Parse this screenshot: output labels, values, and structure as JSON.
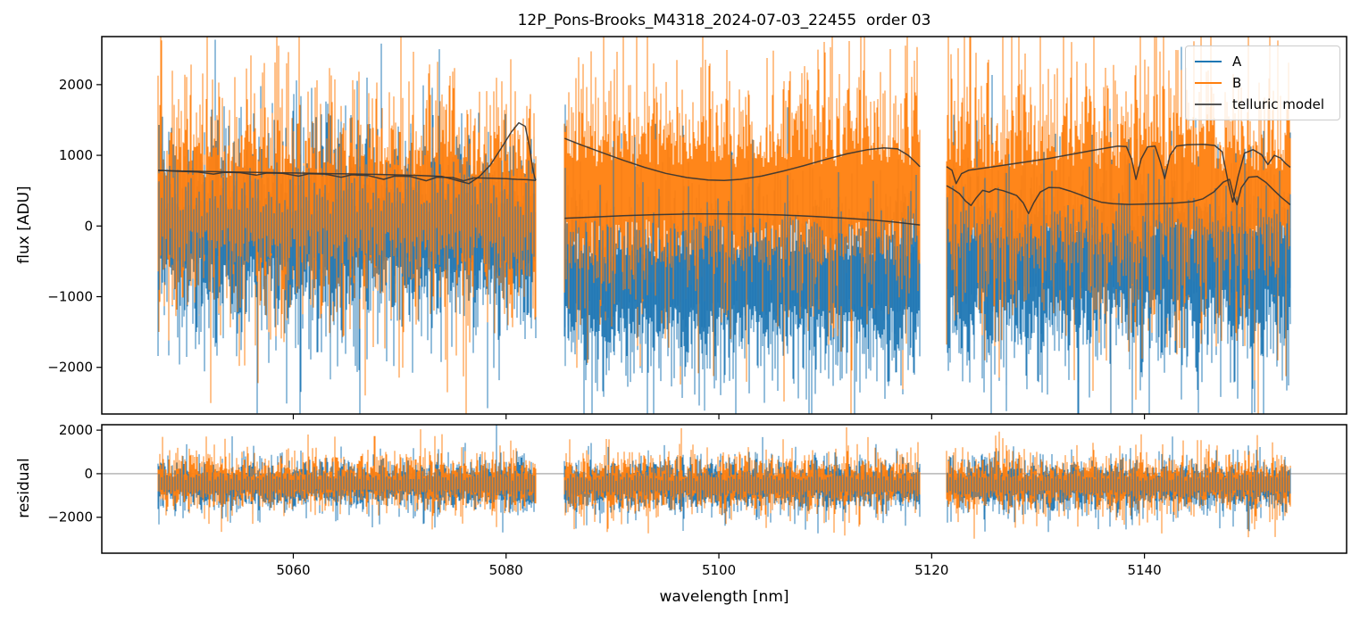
{
  "chart_data": {
    "type": "line",
    "title": "12P_Pons-Brooks_M4318_2024-07-03_22455  order 03",
    "xlabel": "wavelength [nm]",
    "xlim": [
      5042,
      5159
    ],
    "xticks": [
      5060,
      5080,
      5100,
      5120,
      5140
    ],
    "grid": false,
    "legend": {
      "position": "upper right",
      "entries": [
        "A",
        "B",
        "telluric model"
      ]
    },
    "wavelength_segments_nm": [
      [
        5047.3,
        5082.8
      ],
      [
        5085.5,
        5118.9
      ],
      [
        5121.4,
        5153.7
      ]
    ],
    "panels": [
      {
        "id": "flux",
        "ylabel": "flux [ADU]",
        "ylim": [
          -2660,
          2680
        ],
        "yticks": [
          -2000,
          -1000,
          0,
          1000,
          2000
        ],
        "spike_rate": 0.12,
        "spike_scale": 2.0,
        "series": [
          {
            "name": "A",
            "color": "#1f77b4",
            "noise_envelope_by_segment": [
              {
                "center": -120,
                "sigma": 680
              },
              {
                "center": -780,
                "sigma": 680
              },
              {
                "center": -520,
                "sigma": 730
              }
            ]
          },
          {
            "name": "B",
            "color": "#ff7f0e",
            "noise_envelope_by_segment": [
              {
                "center": 330,
                "sigma": 760
              },
              {
                "center": 470,
                "sigma": 800
              },
              {
                "center": 420,
                "sigma": 800
              }
            ]
          }
        ]
      },
      {
        "id": "residual",
        "ylabel": "residual",
        "ylim": [
          -3650,
          2250
        ],
        "yticks": [
          -2000,
          0,
          2000
        ],
        "zero_line_y": 0,
        "spike_rate": 0.09,
        "spike_scale": 2.3,
        "series": [
          {
            "name": "A",
            "color": "#1f77b4",
            "noise_envelope_by_segment": [
              {
                "center": -520,
                "sigma": 560
              },
              {
                "center": -560,
                "sigma": 580
              },
              {
                "center": -540,
                "sigma": 580
              }
            ]
          },
          {
            "name": "B",
            "color": "#ff7f0e",
            "noise_envelope_by_segment": [
              {
                "center": -430,
                "sigma": 620
              },
              {
                "center": -460,
                "sigma": 640
              },
              {
                "center": -450,
                "sigma": 640
              }
            ]
          }
        ]
      }
    ],
    "telluric_model": {
      "name": "telluric model",
      "color": "#333333",
      "curves_by_segment": [
        [
          [
            [
              5047.3,
              790
            ],
            [
              5049,
              775
            ],
            [
              5051,
              765
            ],
            [
              5052.5,
              735
            ],
            [
              5053.5,
              760
            ],
            [
              5055,
              755
            ],
            [
              5056.5,
              720
            ],
            [
              5057.5,
              750
            ],
            [
              5059,
              745
            ],
            [
              5060.5,
              705
            ],
            [
              5061.5,
              740
            ],
            [
              5063,
              735
            ],
            [
              5064.5,
              690
            ],
            [
              5065.5,
              725
            ],
            [
              5067,
              715
            ],
            [
              5068.5,
              660
            ],
            [
              5069.5,
              705
            ],
            [
              5071,
              700
            ],
            [
              5072.5,
              640
            ],
            [
              5073.5,
              690
            ],
            [
              5075,
              685
            ],
            [
              5076,
              640
            ],
            [
              5077,
              680
            ],
            [
              5078.5,
              675
            ],
            [
              5080,
              670
            ],
            [
              5081,
              660
            ],
            [
              5082,
              655
            ],
            [
              5082.8,
              645
            ]
          ],
          [
            [
              5047.3,
              785
            ],
            [
              5052,
              770
            ],
            [
              5056,
              760
            ],
            [
              5060,
              750
            ],
            [
              5064,
              740
            ],
            [
              5068,
              730
            ],
            [
              5072,
              715
            ],
            [
              5074,
              700
            ],
            [
              5075.5,
              640
            ],
            [
              5076.5,
              600
            ],
            [
              5077.5,
              700
            ],
            [
              5078.5,
              860
            ],
            [
              5079.5,
              1090
            ],
            [
              5080.5,
              1330
            ],
            [
              5081.2,
              1460
            ],
            [
              5081.8,
              1410
            ],
            [
              5082.2,
              1120
            ],
            [
              5082.5,
              820
            ],
            [
              5082.7,
              680
            ],
            [
              5082.8,
              650
            ]
          ]
        ],
        [
          [
            [
              5085.5,
              1240
            ],
            [
              5087,
              1150
            ],
            [
              5089,
              1040
            ],
            [
              5091,
              930
            ],
            [
              5093,
              830
            ],
            [
              5095,
              745
            ],
            [
              5097,
              685
            ],
            [
              5099,
              650
            ],
            [
              5100.5,
              645
            ],
            [
              5102,
              660
            ],
            [
              5104,
              705
            ],
            [
              5106,
              775
            ],
            [
              5108,
              855
            ],
            [
              5110,
              940
            ],
            [
              5112,
              1020
            ],
            [
              5114,
              1080
            ],
            [
              5115.5,
              1105
            ],
            [
              5116.8,
              1090
            ],
            [
              5117.8,
              1000
            ],
            [
              5118.5,
              900
            ],
            [
              5118.9,
              840
            ]
          ],
          [
            [
              5085.5,
              110
            ],
            [
              5088,
              125
            ],
            [
              5091,
              145
            ],
            [
              5094,
              160
            ],
            [
              5097,
              170
            ],
            [
              5100,
              172
            ],
            [
              5103,
              168
            ],
            [
              5106,
              155
            ],
            [
              5109,
              135
            ],
            [
              5112,
              110
            ],
            [
              5114.5,
              85
            ],
            [
              5116.5,
              55
            ],
            [
              5118,
              30
            ],
            [
              5118.9,
              15
            ]
          ]
        ],
        [
          [
            [
              5121.4,
              840
            ],
            [
              5121.9,
              790
            ],
            [
              5122.3,
              600
            ],
            [
              5122.8,
              740
            ],
            [
              5123.5,
              790
            ],
            [
              5125,
              820
            ],
            [
              5127,
              865
            ],
            [
              5129,
              910
            ],
            [
              5131,
              955
            ],
            [
              5133,
              1010
            ],
            [
              5135,
              1065
            ],
            [
              5136.5,
              1105
            ],
            [
              5137.5,
              1130
            ],
            [
              5138.3,
              1125
            ],
            [
              5138.8,
              940
            ],
            [
              5139.2,
              660
            ],
            [
              5139.7,
              950
            ],
            [
              5140.3,
              1120
            ],
            [
              5141,
              1130
            ],
            [
              5141.5,
              900
            ],
            [
              5141.9,
              670
            ],
            [
              5142.4,
              1000
            ],
            [
              5143,
              1130
            ],
            [
              5144,
              1150
            ],
            [
              5145.5,
              1155
            ],
            [
              5146.6,
              1140
            ],
            [
              5147.3,
              1050
            ],
            [
              5147.9,
              600
            ],
            [
              5148.3,
              340
            ],
            [
              5148.8,
              700
            ],
            [
              5149.4,
              1030
            ],
            [
              5150.2,
              1080
            ],
            [
              5151,
              1010
            ],
            [
              5151.6,
              870
            ],
            [
              5152.2,
              1000
            ],
            [
              5152.8,
              960
            ],
            [
              5153.3,
              880
            ],
            [
              5153.7,
              830
            ]
          ],
          [
            [
              5121.4,
              570
            ],
            [
              5122,
              520
            ],
            [
              5122.6,
              460
            ],
            [
              5123.2,
              350
            ],
            [
              5123.7,
              290
            ],
            [
              5124.2,
              400
            ],
            [
              5124.8,
              505
            ],
            [
              5125.4,
              480
            ],
            [
              5126,
              525
            ],
            [
              5126.7,
              500
            ],
            [
              5127.4,
              465
            ],
            [
              5128,
              430
            ],
            [
              5128.6,
              330
            ],
            [
              5129.1,
              175
            ],
            [
              5129.6,
              330
            ],
            [
              5130.2,
              480
            ],
            [
              5131,
              545
            ],
            [
              5132,
              540
            ],
            [
              5133,
              495
            ],
            [
              5134,
              440
            ],
            [
              5135,
              380
            ],
            [
              5136,
              335
            ],
            [
              5137,
              315
            ],
            [
              5138.5,
              305
            ],
            [
              5140,
              310
            ],
            [
              5141.5,
              315
            ],
            [
              5143,
              325
            ],
            [
              5144.5,
              345
            ],
            [
              5145.5,
              385
            ],
            [
              5146.5,
              480
            ],
            [
              5147.4,
              620
            ],
            [
              5148,
              660
            ],
            [
              5148.4,
              420
            ],
            [
              5148.7,
              300
            ],
            [
              5149.1,
              540
            ],
            [
              5149.8,
              690
            ],
            [
              5150.6,
              700
            ],
            [
              5151.4,
              620
            ],
            [
              5152.2,
              500
            ],
            [
              5152.9,
              400
            ],
            [
              5153.4,
              340
            ],
            [
              5153.7,
              300
            ]
          ]
        ]
      ]
    },
    "zero_line_color": "#808080",
    "spine_color": "#000000"
  }
}
